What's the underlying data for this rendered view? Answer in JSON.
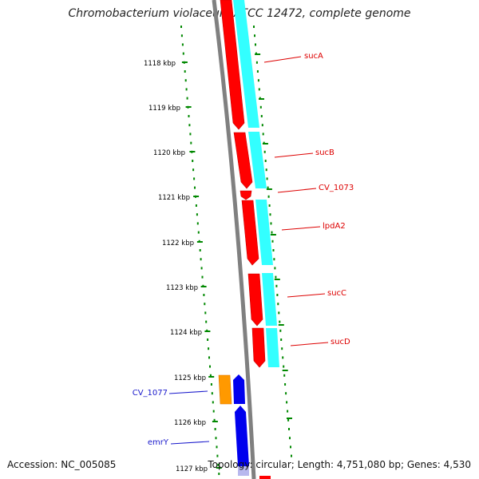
{
  "title": "Chromobacterium violaceum ATCC 12472, complete genome",
  "footer": {
    "accession": "Accession: NC_005085",
    "topology": "Topology: circular; Length: 4,751,080 bp; Genes: 4,530"
  },
  "scale": {
    "unit": "kbp",
    "ticks": [
      "1118 kbp",
      "1119 kbp",
      "1120 kbp",
      "1121 kbp",
      "1122 kbp",
      "1123 kbp",
      "1124 kbp",
      "1125 kbp",
      "1126 kbp",
      "1127 kbp"
    ]
  },
  "genes": [
    {
      "label": "sucA",
      "color": "#dd0000"
    },
    {
      "label": "sucB",
      "color": "#dd0000"
    },
    {
      "label": "CV_1073",
      "color": "#dd0000"
    },
    {
      "label": "lpdA2",
      "color": "#dd0000"
    },
    {
      "label": "sucC",
      "color": "#dd0000"
    },
    {
      "label": "sucD",
      "color": "#dd0000"
    },
    {
      "label": "CV_1077",
      "color": "#1a1acc"
    },
    {
      "label": "emrY",
      "color": "#1a1acc"
    }
  ],
  "colors": {
    "forward_cds": "#ff0000",
    "forward_rna": "#33ffff",
    "reverse_cds": "#0000ee",
    "reverse_other": "#ff9900",
    "backbone": "#808080",
    "tick": "#008800"
  }
}
